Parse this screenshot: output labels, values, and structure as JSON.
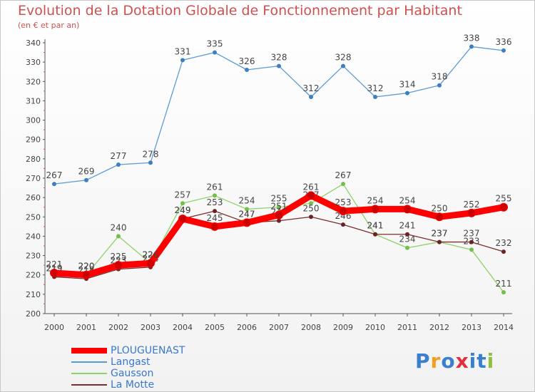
{
  "chart_data": {
    "type": "line",
    "title": "Evolution de la Dotation Globale de Fonctionnement par Habitant",
    "subtitle": "(en € et par an)",
    "xlabel": "",
    "ylabel": "",
    "x": [
      "2000",
      "2001",
      "2002",
      "2003",
      "2004",
      "2005",
      "2006",
      "2007",
      "2008",
      "2009",
      "2010",
      "2011",
      "2012",
      "2013",
      "2014"
    ],
    "ylim": [
      200,
      340
    ],
    "yticks": [
      200,
      210,
      220,
      230,
      240,
      250,
      260,
      270,
      280,
      290,
      300,
      310,
      320,
      330,
      340
    ],
    "grid": false,
    "legend_position": "bottom-left",
    "series": [
      {
        "name": "Langast",
        "color": "#5b9bd5",
        "dot": "#3f7fc0",
        "values": [
          267,
          269,
          277,
          278,
          331,
          335,
          326,
          328,
          312,
          328,
          312,
          314,
          318,
          338,
          336
        ]
      },
      {
        "name": "Gausson",
        "color": "#8fd16a",
        "dot": "#72c04a",
        "values": [
          219,
          220,
          240,
          226,
          257,
          261,
          254,
          255,
          257,
          267,
          241,
          234,
          237,
          233,
          211
        ]
      },
      {
        "name": "La Motte",
        "color": "#7a2e2e",
        "dot": "#6a2424",
        "values": [
          219,
          218,
          223,
          224,
          249,
          253,
          247,
          248,
          250,
          246,
          241,
          241,
          237,
          237,
          232
        ]
      },
      {
        "name": "PLOUGUENAST",
        "color": "#ff0000",
        "dot": "#cc0000",
        "bold": true,
        "values": [
          221,
          220,
          225,
          226,
          249,
          245,
          247,
          251,
          261,
          253,
          254,
          254,
          250,
          252,
          255
        ]
      }
    ]
  },
  "legend": {
    "items": [
      {
        "label": "PLOUGUENAST",
        "color": "#ff0000"
      },
      {
        "label": "Langast",
        "color": "#5b9bd5"
      },
      {
        "label": "Gausson",
        "color": "#8fd16a"
      },
      {
        "label": "La Motte",
        "color": "#7a2e2e"
      }
    ]
  },
  "brand": {
    "letters": [
      "P",
      "r",
      "o",
      "x",
      "i",
      "t",
      "i"
    ],
    "colors": [
      "#3a7fd0",
      "#f0a020",
      "#3a7fd0",
      "#e03040",
      "#3a7fd0",
      "#3a7fd0",
      "#90c040"
    ]
  }
}
